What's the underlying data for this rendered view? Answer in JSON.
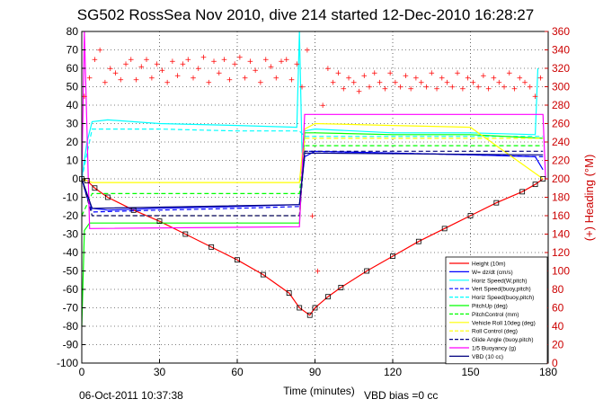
{
  "title": "SG502 RossSea Nov 2010, dive 214 started 12-Dec-2010 16:28:27",
  "footer": {
    "timestamp": "06-Oct-2011 10:37:38",
    "vbd_bias": "VBD bias =0 cc"
  },
  "colors": {
    "height": "#ff0000",
    "w": "#0000ff",
    "cyan": "#00ffff",
    "green": "#00ff00",
    "yellow": "#ffff00",
    "magenta": "#ff00ff",
    "navy": "#00007f",
    "heading": "#ff0000"
  },
  "chart_data": {
    "type": "line",
    "xlabel": "Time (minutes)",
    "ylabel_right": "(+) Heading (°M)",
    "xlim": [
      0,
      180
    ],
    "ylim_left": [
      -100,
      80
    ],
    "ylim_right": [
      0,
      360
    ],
    "xticks": [
      0,
      30,
      60,
      90,
      120,
      150,
      180
    ],
    "yticks_left": [
      80,
      70,
      60,
      50,
      40,
      30,
      20,
      10,
      0,
      -10,
      -20,
      -30,
      -40,
      -50,
      -60,
      -70,
      -80,
      -90,
      -100
    ],
    "yticks_right": [
      360,
      340,
      320,
      300,
      280,
      260,
      240,
      220,
      200,
      180,
      160,
      140,
      120,
      100,
      80,
      60,
      40,
      20,
      0
    ],
    "grid": true,
    "legend_position": "bottom-right",
    "series": [
      {
        "name": "Height (10m)",
        "color": "#ff0000",
        "style": "solid",
        "x": [
          0,
          2,
          5,
          10,
          20,
          30,
          40,
          50,
          60,
          70,
          80,
          84,
          88,
          90,
          95,
          100,
          110,
          120,
          130,
          140,
          150,
          160,
          170,
          175,
          178
        ],
        "y": [
          0,
          -1,
          -5,
          -10,
          -17,
          -23,
          -30,
          -37,
          -44,
          -52,
          -62,
          -70,
          -74,
          -70,
          -64,
          -59,
          -50,
          -42,
          -34,
          -27,
          -20,
          -13,
          -7,
          -3,
          0
        ]
      },
      {
        "name": "W= dz/dt (cm/s)",
        "color": "#0000ff",
        "style": "solid",
        "x": [
          0,
          2,
          4,
          10,
          30,
          60,
          84,
          86,
          90,
          120,
          150,
          175,
          178
        ],
        "y": [
          0,
          -10,
          -16,
          -17,
          -16,
          -15,
          -14,
          12,
          15,
          14,
          13,
          12,
          5
        ]
      },
      {
        "name": "Horiz Speed(W,pitch)",
        "color": "#00ffff",
        "style": "solid",
        "x": [
          0,
          2,
          4,
          10,
          30,
          60,
          83,
          84,
          85,
          86,
          90,
          120,
          150,
          175,
          176
        ],
        "y": [
          0,
          20,
          31,
          32,
          30,
          29,
          28,
          80,
          14,
          26,
          27,
          25,
          25,
          24,
          60
        ]
      },
      {
        "name": "Vert Speed(buoy,pitch)",
        "color": "#0000ff",
        "style": "dashed",
        "x": [
          0,
          4,
          30,
          60,
          84,
          86,
          120,
          150,
          178
        ],
        "y": [
          0,
          -18,
          -17,
          -16,
          -15,
          15,
          14,
          13,
          12
        ]
      },
      {
        "name": "Horiz Speed(buoy,pitch)",
        "color": "#00ffff",
        "style": "dashed",
        "x": [
          0,
          4,
          30,
          60,
          84,
          86,
          120,
          150,
          178
        ],
        "y": [
          0,
          27,
          27,
          26,
          26,
          23,
          23,
          23,
          23
        ]
      },
      {
        "name": "PitchUp (deg)",
        "color": "#00ff00",
        "style": "solid",
        "x": [
          0,
          1,
          3,
          10,
          30,
          60,
          84,
          86,
          90,
          120,
          150,
          178
        ],
        "y": [
          -80,
          -28,
          -24,
          -24,
          -24,
          -24,
          -24,
          25,
          25,
          24,
          24,
          22
        ]
      },
      {
        "name": "PitchControl (mm)",
        "color": "#00ff00",
        "style": "dashed",
        "x": [
          0,
          4,
          84,
          86,
          178
        ],
        "y": [
          -20,
          -8,
          -8,
          18,
          18
        ]
      },
      {
        "name": "Vehicle Roll 10deg (deg)",
        "color": "#ffff00",
        "style": "solid",
        "x": [
          0,
          4,
          30,
          60,
          84,
          86,
          90,
          120,
          150,
          178
        ],
        "y": [
          0,
          -2,
          -2,
          -2,
          -2,
          27,
          30,
          29,
          28,
          0
        ]
      },
      {
        "name": "Roll Control (deg)",
        "color": "#ffff00",
        "style": "dashed",
        "x": [
          0,
          4,
          84,
          86,
          178
        ],
        "y": [
          0,
          -20,
          -20,
          22,
          22
        ]
      },
      {
        "name": "Glide Angle (buoy,pitch)",
        "color": "#00007f",
        "style": "dashed",
        "x": [
          0,
          4,
          84,
          86,
          178
        ],
        "y": [
          0,
          -20,
          -20,
          15,
          15
        ]
      },
      {
        "name": "1/5 Buoyancy (g)",
        "color": "#ff00ff",
        "style": "solid",
        "x": [
          0,
          1,
          3,
          84,
          86,
          178,
          179
        ],
        "y": [
          0,
          80,
          -27,
          -26,
          35,
          35,
          0
        ]
      },
      {
        "name": "VBD (10 cc)",
        "color": "#00007f",
        "style": "solid",
        "x": [
          0,
          4,
          84,
          86,
          178
        ],
        "y": [
          0,
          -16,
          -14,
          14,
          13
        ]
      }
    ],
    "heading_series": {
      "name": "(+) Heading (°M)",
      "color": "#ff0000",
      "axis": "right",
      "x": [
        1,
        3,
        5,
        7,
        9,
        11,
        13,
        15,
        17,
        19,
        21,
        23,
        25,
        27,
        29,
        31,
        33,
        35,
        37,
        39,
        41,
        43,
        45,
        47,
        49,
        51,
        53,
        55,
        57,
        59,
        61,
        63,
        65,
        67,
        69,
        71,
        73,
        75,
        77,
        79,
        81,
        83,
        85,
        87,
        89,
        91,
        93,
        95,
        97,
        99,
        101,
        103,
        105,
        107,
        109,
        111,
        113,
        115,
        117,
        119,
        121,
        123,
        125,
        127,
        129,
        131,
        133,
        135,
        137,
        139,
        141,
        143,
        145,
        147,
        149,
        151,
        153,
        155,
        157,
        159,
        161,
        163,
        165,
        167,
        169,
        171,
        173,
        175,
        177
      ],
      "y": [
        290,
        310,
        330,
        340,
        305,
        320,
        315,
        308,
        325,
        330,
        308,
        322,
        330,
        310,
        325,
        318,
        305,
        328,
        312,
        325,
        330,
        310,
        320,
        332,
        305,
        328,
        315,
        330,
        308,
        325,
        332,
        310,
        328,
        318,
        305,
        330,
        322,
        310,
        328,
        330,
        308,
        325,
        300,
        340,
        160,
        100,
        280,
        320,
        305,
        315,
        298,
        310,
        305,
        295,
        312,
        300,
        315,
        305,
        298,
        315,
        305,
        300,
        312,
        298,
        310,
        305,
        300,
        315,
        298,
        310,
        305,
        300,
        315,
        298,
        310,
        305,
        300,
        312,
        298,
        310,
        305,
        300,
        315,
        298,
        310,
        305,
        300,
        290,
        310
      ]
    }
  }
}
